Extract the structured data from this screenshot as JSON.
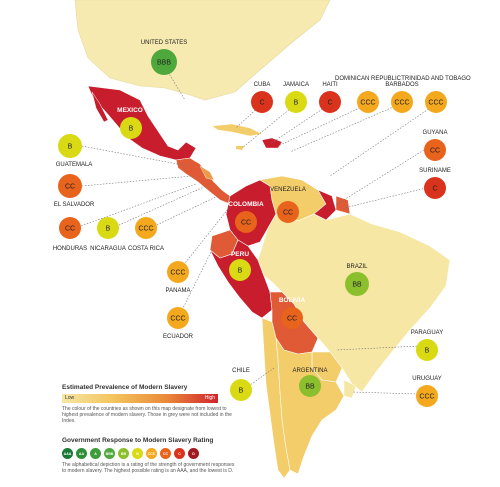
{
  "map": {
    "countries": [
      {
        "name": "UNITED STATES",
        "rating": "BBB"
      },
      {
        "name": "CUBA",
        "rating": "C"
      },
      {
        "name": "JAMAICA",
        "rating": "B"
      },
      {
        "name": "HAITI",
        "rating": "C"
      },
      {
        "name": "DOMINICAN REPUBLIC",
        "rating": "CCC"
      },
      {
        "name": "BARBADOS",
        "rating": "CCC"
      },
      {
        "name": "TRINIDAD AND TOBAGO",
        "rating": "CCC"
      },
      {
        "name": "GUYANA",
        "rating": "CC"
      },
      {
        "name": "SURINAME",
        "rating": "C"
      },
      {
        "name": "GUATEMALA",
        "rating": "B"
      },
      {
        "name": "EL SALVADOR",
        "rating": "CC"
      },
      {
        "name": "HONDURAS",
        "rating": "CC"
      },
      {
        "name": "NICARAGUA",
        "rating": "B"
      },
      {
        "name": "COSTA RICA",
        "rating": "CCC"
      },
      {
        "name": "PANAMA",
        "rating": "CCC"
      },
      {
        "name": "ECUADOR",
        "rating": "CCC"
      },
      {
        "name": "BRAZIL",
        "rating": "BB"
      },
      {
        "name": "PARAGUAY",
        "rating": "B"
      },
      {
        "name": "URUGUAY",
        "rating": "CCC"
      },
      {
        "name": "CHILE",
        "rating": "B"
      },
      {
        "name": "ARGENTINA",
        "rating": "BB"
      },
      {
        "name": "MEXICO",
        "rating": "B"
      },
      {
        "name": "COLOMBIA",
        "rating": "CC"
      },
      {
        "name": "VENEZUELA",
        "rating": "CC"
      },
      {
        "name": "PERU",
        "rating": "B"
      },
      {
        "name": "BOLIVIA",
        "rating": "CC"
      }
    ],
    "in_map_labels": {
      "mexico": "MEXICO",
      "colombia": "COLOMBIA",
      "venezuela": "VENEZUELA",
      "peru": "PERU",
      "bolivia": "BOLIVIA",
      "argentina": "ARGENTINA",
      "brazil": "BRAZIL"
    },
    "rating_colors": {
      "BBB": "#4ea83b",
      "BB": "#8cbf2e",
      "B": "#d9d914",
      "CCC": "#f4a81d",
      "CC": "#e8631c",
      "C": "#d9331d"
    },
    "prevalence_colors": {
      "very_low": "#f6e7a4",
      "low": "#f3cd6a",
      "medium": "#eb9a48",
      "high": "#df5a35",
      "very_high": "#c81d2c",
      "not_included": "#f3eecc"
    }
  },
  "legend": {
    "prevalence_title": "Estimated Prevalence of Modern Slavery",
    "low": "Low",
    "high": "High",
    "prevalence_note": "The colour of the countries as shown on this map designate from lowest to highest prevalence of modern slavery. Those in grey were not included in the Index.",
    "response_title": "Government Response to Modern Slavery Rating",
    "response_note": "The alphabetical depiction is a rating of the strength of government responses to modern slavery. The highest possible rating is an AAA, and the lowest is D.",
    "ratings": [
      "AAA",
      "AA",
      "A",
      "BBB",
      "BB",
      "B",
      "CCC",
      "CC",
      "C",
      "D"
    ],
    "rating_chip_colors": [
      "#1b7a34",
      "#2e8f36",
      "#3e9c3a",
      "#4ea83b",
      "#8cbf2e",
      "#d9d914",
      "#f4a81d",
      "#e8631c",
      "#d9331d",
      "#a3181f"
    ]
  }
}
